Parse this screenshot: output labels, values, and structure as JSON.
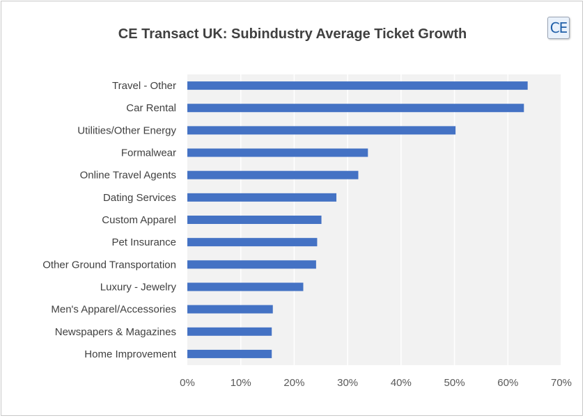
{
  "chart_data": {
    "type": "bar",
    "orientation": "horizontal",
    "title": "CE Transact UK: Subindustry Average Ticket Growth",
    "categories": [
      "Travel - Other",
      "Car Rental",
      "Utilities/Other Energy",
      "Formalwear",
      "Online Travel Agents",
      "Dating Services",
      "Custom Apparel",
      "Pet Insurance",
      "Other Ground Transportation",
      "Luxury - Jewelry",
      "Men's Apparel/Accessories",
      "Newspapers & Magazines",
      "Home Improvement"
    ],
    "values": [
      63.7,
      63.0,
      50.2,
      33.8,
      32.0,
      27.9,
      25.1,
      24.3,
      24.1,
      21.7,
      16.0,
      15.8,
      15.8
    ],
    "xlim": [
      0,
      70
    ],
    "xticks": [
      "0%",
      "10%",
      "20%",
      "30%",
      "40%",
      "50%",
      "60%",
      "70%"
    ],
    "grid": true,
    "legend": "none",
    "bar_color": "#4472c4",
    "plot_background": "#f2f2f2",
    "gridline_color": "#ffffff"
  },
  "logo": {
    "text": "CE",
    "accent": "#1f5fa8"
  }
}
